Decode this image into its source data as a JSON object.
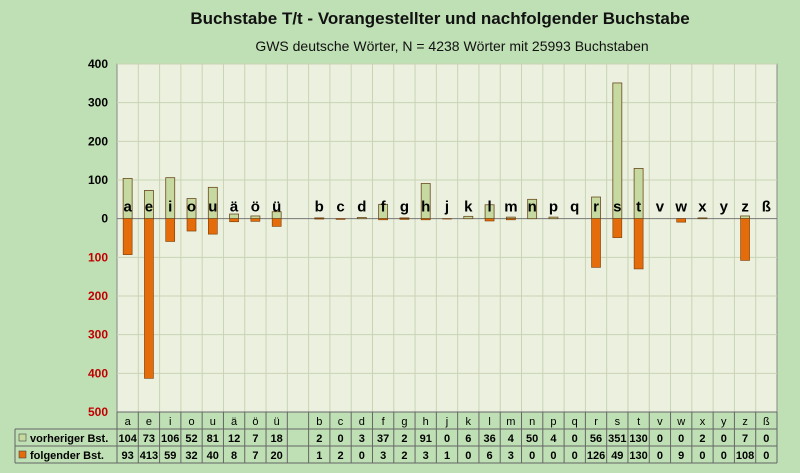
{
  "chart_data": {
    "type": "bar",
    "title": "Buchstabe T/t - Vorangestellter und nachfolgender Buchstabe",
    "subtitle": "GWS deutsche Wörter, N = 4238 Wörter mit 25993 Buchstaben",
    "categories": [
      "a",
      "e",
      "i",
      "o",
      "u",
      "ä",
      "ö",
      "ü",
      "",
      "b",
      "c",
      "d",
      "f",
      "g",
      "h",
      "j",
      "k",
      "l",
      "m",
      "n",
      "p",
      "q",
      "r",
      "s",
      "t",
      "v",
      "w",
      "x",
      "y",
      "z",
      "ß"
    ],
    "ylim": [
      -500,
      400
    ],
    "yticks": [
      400,
      300,
      200,
      100,
      0,
      -100,
      -200,
      -300,
      -400,
      -500
    ],
    "ytick_labels": [
      "400",
      "300",
      "200",
      "100",
      "0",
      "100",
      "200",
      "300",
      "400",
      "500"
    ],
    "series": [
      {
        "name": "vorheriger Bst.",
        "color": "#c6d9a0",
        "values": [
          104,
          73,
          106,
          52,
          81,
          12,
          7,
          18,
          null,
          2,
          0,
          3,
          37,
          2,
          91,
          0,
          6,
          36,
          4,
          50,
          4,
          0,
          56,
          351,
          130,
          0,
          0,
          2,
          0,
          7,
          0
        ]
      },
      {
        "name": "folgender Bst.",
        "color": "#e46c0a",
        "values": [
          93,
          413,
          59,
          32,
          40,
          8,
          7,
          20,
          null,
          1,
          2,
          0,
          3,
          2,
          3,
          1,
          0,
          6,
          3,
          0,
          0,
          0,
          126,
          49,
          130,
          0,
          9,
          0,
          0,
          108,
          0
        ]
      }
    ],
    "grid": true,
    "legend": "in data table"
  }
}
